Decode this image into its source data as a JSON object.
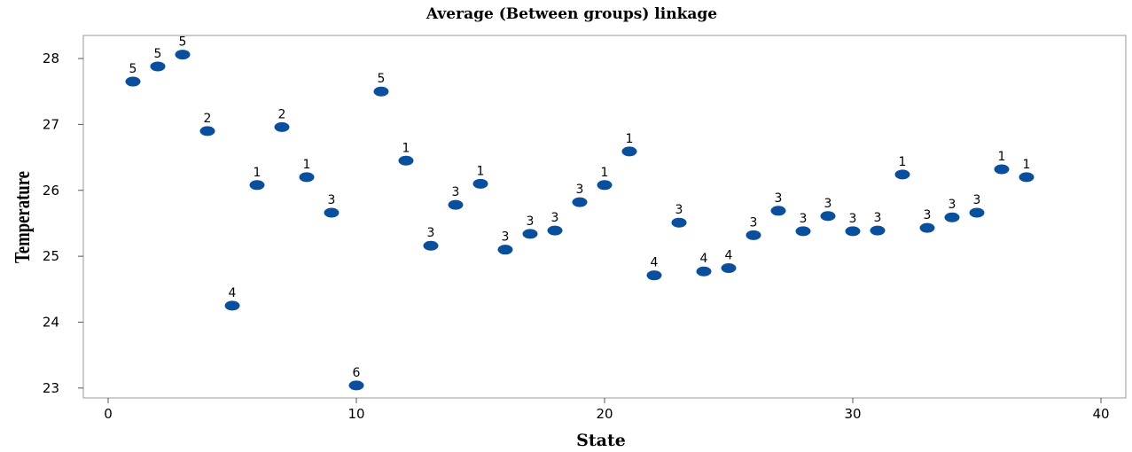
{
  "chart_data": {
    "type": "scatter",
    "title": "Average (Between groups) linkage",
    "xlabel": "State",
    "ylabel": "Temperature",
    "xlim": [
      -1,
      41
    ],
    "ylim": [
      22.85,
      28.35
    ],
    "xticks": [
      0,
      10,
      20,
      30,
      40
    ],
    "yticks": [
      23,
      24,
      25,
      26,
      27,
      28
    ],
    "marker_color": "#0a4f9c",
    "grid": false,
    "points": [
      {
        "x": 1,
        "y": 27.65,
        "label": "5"
      },
      {
        "x": 2,
        "y": 27.88,
        "label": "5"
      },
      {
        "x": 3,
        "y": 28.06,
        "label": "5"
      },
      {
        "x": 4,
        "y": 26.9,
        "label": "2"
      },
      {
        "x": 5,
        "y": 24.25,
        "label": "4"
      },
      {
        "x": 6,
        "y": 26.08,
        "label": "1"
      },
      {
        "x": 7,
        "y": 26.96,
        "label": "2"
      },
      {
        "x": 8,
        "y": 26.2,
        "label": "1"
      },
      {
        "x": 9,
        "y": 25.66,
        "label": "3"
      },
      {
        "x": 10,
        "y": 23.04,
        "label": "6"
      },
      {
        "x": 11,
        "y": 27.5,
        "label": "5"
      },
      {
        "x": 12,
        "y": 26.45,
        "label": "1"
      },
      {
        "x": 13,
        "y": 25.16,
        "label": "3"
      },
      {
        "x": 14,
        "y": 25.78,
        "label": "3"
      },
      {
        "x": 15,
        "y": 26.1,
        "label": "1"
      },
      {
        "x": 16,
        "y": 25.1,
        "label": "3"
      },
      {
        "x": 17,
        "y": 25.34,
        "label": "3"
      },
      {
        "x": 18,
        "y": 25.39,
        "label": "3"
      },
      {
        "x": 19,
        "y": 25.82,
        "label": "3"
      },
      {
        "x": 20,
        "y": 26.08,
        "label": "1"
      },
      {
        "x": 21,
        "y": 26.59,
        "label": "1"
      },
      {
        "x": 22,
        "y": 24.71,
        "label": "4"
      },
      {
        "x": 23,
        "y": 25.51,
        "label": "3"
      },
      {
        "x": 24,
        "y": 24.77,
        "label": "4"
      },
      {
        "x": 25,
        "y": 24.82,
        "label": "4"
      },
      {
        "x": 26,
        "y": 25.32,
        "label": "3"
      },
      {
        "x": 27,
        "y": 25.69,
        "label": "3"
      },
      {
        "x": 28,
        "y": 25.38,
        "label": "3"
      },
      {
        "x": 29,
        "y": 25.61,
        "label": "3"
      },
      {
        "x": 30,
        "y": 25.38,
        "label": "3"
      },
      {
        "x": 31,
        "y": 25.39,
        "label": "3"
      },
      {
        "x": 32,
        "y": 26.24,
        "label": "1"
      },
      {
        "x": 33,
        "y": 25.43,
        "label": "3"
      },
      {
        "x": 34,
        "y": 25.59,
        "label": "3"
      },
      {
        "x": 35,
        "y": 25.66,
        "label": "3"
      },
      {
        "x": 36,
        "y": 26.32,
        "label": "1"
      },
      {
        "x": 37,
        "y": 26.2,
        "label": "1"
      }
    ]
  }
}
